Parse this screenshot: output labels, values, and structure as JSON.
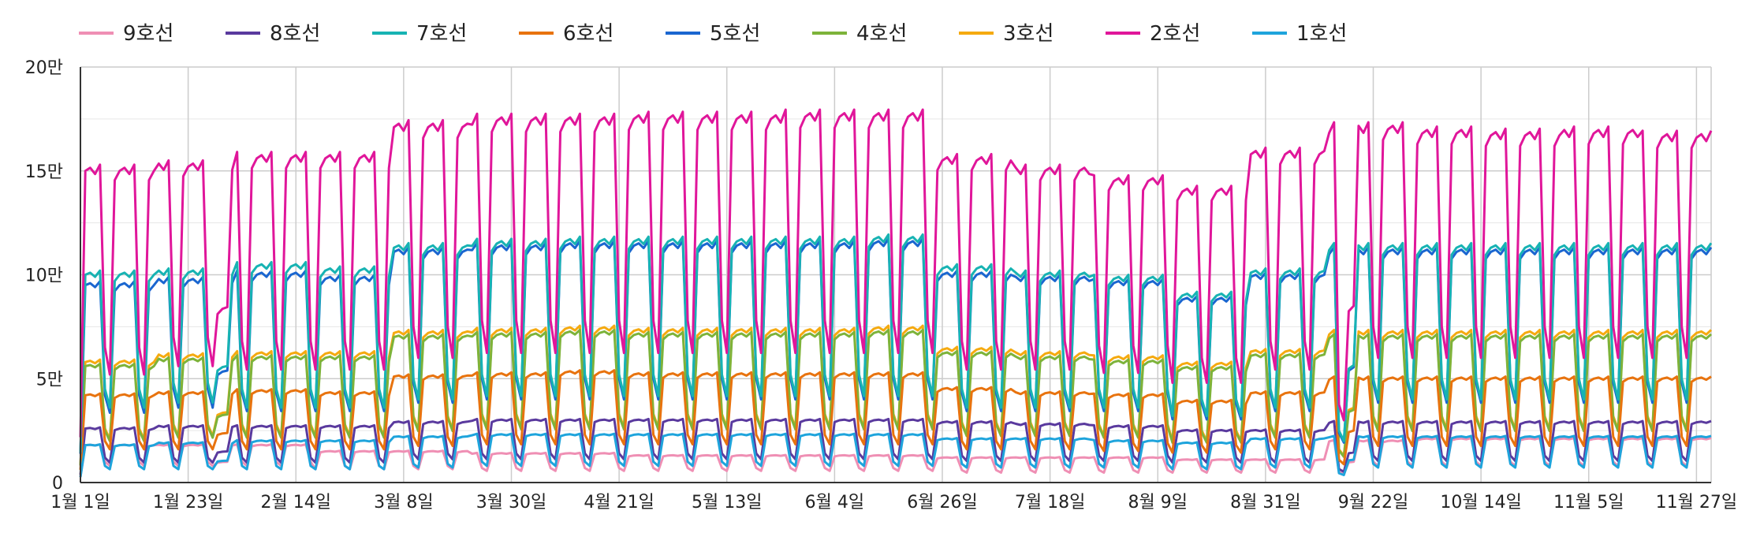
{
  "chart_data": {
    "type": "line",
    "title": "",
    "xlabel": "",
    "ylabel": "",
    "ylim": [
      0,
      200000
    ],
    "y_ticks": [
      {
        "value": 0,
        "label": "0"
      },
      {
        "value": 50000,
        "label": "5만"
      },
      {
        "value": 100000,
        "label": "10만"
      },
      {
        "value": 150000,
        "label": "15만"
      },
      {
        "value": 200000,
        "label": "20만"
      }
    ],
    "x_ticks": [
      {
        "day": 1,
        "label": "1월 1일"
      },
      {
        "day": 23,
        "label": "1월 23일"
      },
      {
        "day": 45,
        "label": "2월 14일"
      },
      {
        "day": 67,
        "label": "3월 8일"
      },
      {
        "day": 89,
        "label": "3월 30일"
      },
      {
        "day": 111,
        "label": "4월 21일"
      },
      {
        "day": 133,
        "label": "5월 13일"
      },
      {
        "day": 155,
        "label": "6월 4일"
      },
      {
        "day": 177,
        "label": "6월 26일"
      },
      {
        "day": 199,
        "label": "7월 18일"
      },
      {
        "day": 221,
        "label": "8월 9일"
      },
      {
        "day": 243,
        "label": "8월 31일"
      },
      {
        "day": 265,
        "label": "9월 22일"
      },
      {
        "day": 287,
        "label": "10월 14일"
      },
      {
        "day": 309,
        "label": "11월 5일"
      },
      {
        "day": 331,
        "label": "11월 27일"
      }
    ],
    "x_range_days": [
      1,
      334
    ],
    "grid": true,
    "legend_position": "top",
    "pattern": "Daily ridership, weekly cycle: weekdays high, weekends low. Levels read per segment.",
    "series": [
      {
        "name": "9호선",
        "color": "#ef8fb4",
        "weekday": [
          18000,
          18000,
          18000,
          15000,
          15000,
          14000,
          14000,
          13000,
          13000,
          13000,
          13000,
          12000,
          12000,
          12000,
          11000,
          11000,
          20000,
          21000,
          21000,
          21000,
          21000
        ],
        "weekend": [
          10000,
          10000,
          10000,
          8000,
          8000,
          7000,
          7000,
          7000,
          7000,
          7000,
          7000,
          6000,
          6000,
          6000,
          6000,
          6000,
          10000,
          10000,
          10000,
          10000,
          10000
        ]
      },
      {
        "name": "8호선",
        "color": "#5a3a9e",
        "weekday": [
          26000,
          27000,
          27000,
          27000,
          29000,
          30000,
          30000,
          30000,
          30000,
          30000,
          30000,
          29000,
          28000,
          27000,
          25000,
          25000,
          29000,
          29000,
          29000,
          29000,
          29000
        ],
        "weekend": [
          12000,
          12000,
          12000,
          12000,
          14000,
          14000,
          14000,
          14000,
          14000,
          14000,
          14000,
          13000,
          13000,
          13000,
          12000,
          12000,
          13000,
          13000,
          13000,
          13000,
          13000
        ]
      },
      {
        "name": "7호선",
        "color": "#17b3b3",
        "weekday": [
          100000,
          101000,
          104000,
          102000,
          113000,
          115000,
          116000,
          116000,
          116000,
          116000,
          117000,
          103000,
          100000,
          98000,
          90000,
          101000,
          113000,
          113000,
          113000,
          113000,
          113000
        ],
        "weekend": [
          45000,
          48000,
          45000,
          45000,
          50000,
          52000,
          52000,
          52000,
          52000,
          52000,
          52000,
          45000,
          45000,
          45000,
          40000,
          45000,
          50000,
          50000,
          50000,
          50000,
          50000
        ]
      },
      {
        "name": "6호선",
        "color": "#e8730e",
        "weekday": [
          42000,
          43000,
          44000,
          43000,
          51000,
          52000,
          53000,
          52000,
          52000,
          52000,
          52000,
          45000,
          43000,
          42000,
          39000,
          43000,
          50000,
          50000,
          50000,
          50000,
          50000
        ],
        "weekend": [
          20000,
          20000,
          20000,
          20000,
          22000,
          23000,
          23000,
          23000,
          23000,
          23000,
          23000,
          20000,
          20000,
          19000,
          18000,
          20000,
          22000,
          22000,
          22000,
          22000,
          22000
        ]
      },
      {
        "name": "5호선",
        "color": "#1a66d0",
        "weekday": [
          95000,
          97000,
          100000,
          98000,
          111000,
          113000,
          114000,
          114000,
          114000,
          114000,
          115000,
          100000,
          98000,
          96000,
          88000,
          99000,
          111000,
          111000,
          111000,
          111000,
          111000
        ],
        "weekend": [
          42000,
          45000,
          43000,
          43000,
          48000,
          50000,
          50000,
          50000,
          50000,
          50000,
          50000,
          43000,
          43000,
          43000,
          38000,
          43000,
          48000,
          48000,
          48000,
          48000,
          48000
        ]
      },
      {
        "name": "4호선",
        "color": "#7db33a",
        "weekday": [
          56000,
          59000,
          60000,
          60000,
          70000,
          71000,
          72000,
          71000,
          71000,
          71000,
          72000,
          62000,
          60000,
          58000,
          55000,
          61000,
          70000,
          70000,
          70000,
          70000,
          70000
        ],
        "weekend": [
          25000,
          27000,
          27000,
          27000,
          31000,
          32000,
          32000,
          32000,
          32000,
          32000,
          32000,
          28000,
          28000,
          27000,
          24000,
          27000,
          31000,
          31000,
          31000,
          31000,
          31000
        ]
      },
      {
        "name": "3호선",
        "color": "#f5aa10",
        "weekday": [
          58000,
          61000,
          62000,
          62000,
          72000,
          73000,
          74000,
          73000,
          73000,
          73000,
          74000,
          64000,
          62000,
          60000,
          57000,
          63000,
          72000,
          72000,
          72000,
          72000,
          72000
        ],
        "weekend": [
          26000,
          28000,
          28000,
          28000,
          32000,
          33000,
          33000,
          33000,
          33000,
          33000,
          33000,
          29000,
          29000,
          28000,
          25000,
          28000,
          32000,
          32000,
          32000,
          32000,
          32000
        ]
      },
      {
        "name": "2호선",
        "color": "#e0169a",
        "weekday": [
          150000,
          152000,
          156000,
          156000,
          171000,
          174000,
          174000,
          175000,
          175000,
          176000,
          176000,
          155000,
          150000,
          145000,
          140000,
          158000,
          170000,
          168000,
          167000,
          168000,
          166000
        ],
        "weekend": [
          65000,
          70000,
          68000,
          68000,
          75000,
          78000,
          78000,
          78000,
          78000,
          78000,
          78000,
          68000,
          68000,
          66000,
          60000,
          68000,
          75000,
          75000,
          75000,
          75000,
          75000
        ]
      },
      {
        "name": "1호선",
        "color": "#1ea4dc",
        "weekday": [
          18000,
          19000,
          20000,
          20000,
          22000,
          23000,
          23000,
          23000,
          23000,
          23000,
          23000,
          21000,
          21000,
          20000,
          19000,
          21000,
          22000,
          22000,
          22000,
          22000,
          22000
        ],
        "weekend": [
          8000,
          8000,
          8000,
          8000,
          9000,
          10000,
          10000,
          10000,
          10000,
          10000,
          10000,
          9000,
          9000,
          9000,
          8000,
          9000,
          9000,
          9000,
          9000,
          9000,
          9000
        ]
      }
    ]
  }
}
